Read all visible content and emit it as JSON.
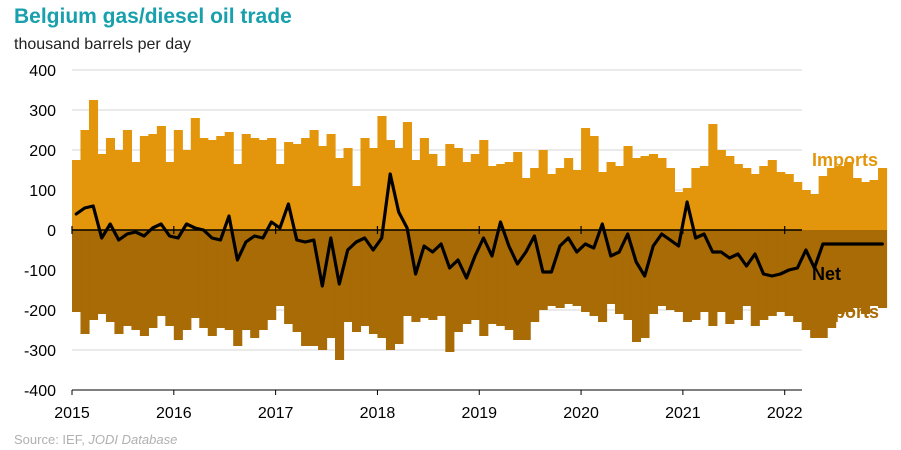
{
  "title": "Belgium gas/diesel oil trade",
  "subtitle": "thousand barrels per day",
  "source": {
    "prefix": "Source: IEF, ",
    "database": "JODI Database"
  },
  "colors": {
    "imports": "#e3960b",
    "exports": "#a86b05",
    "net": "#000000",
    "title": "#18a0ac",
    "exports_label": "#a86b05",
    "grid": "#d4d4d4",
    "axis": "#000000"
  },
  "chart_data": {
    "type": "bar",
    "title": "Belgium gas/diesel oil trade",
    "ylabel": "thousand barrels per day",
    "xlabel": "",
    "ylim": [
      -400,
      400
    ],
    "yticks": [
      -400,
      -300,
      -200,
      -100,
      0,
      100,
      200,
      300,
      400
    ],
    "xlim": [
      2015,
      2022.17
    ],
    "xticks": [
      2015,
      2016,
      2017,
      2018,
      2019,
      2020,
      2021,
      2022
    ],
    "frequency": "monthly",
    "start": "2015-01",
    "series_labels": {
      "imports": "Imports",
      "exports": "Exports",
      "net": "Net"
    },
    "series": [
      {
        "name": "Imports",
        "kind": "bar",
        "values": [
          175,
          250,
          325,
          190,
          230,
          200,
          250,
          170,
          235,
          240,
          260,
          170,
          250,
          200,
          280,
          230,
          225,
          235,
          245,
          165,
          240,
          230,
          225,
          230,
          165,
          220,
          215,
          230,
          250,
          210,
          240,
          180,
          205,
          110,
          230,
          205,
          285,
          225,
          205,
          270,
          175,
          230,
          190,
          160,
          215,
          205,
          170,
          190,
          225,
          160,
          165,
          170,
          195,
          130,
          155,
          200,
          140,
          155,
          180,
          150,
          255,
          235,
          145,
          170,
          160,
          210,
          180,
          185,
          190,
          180,
          155,
          95,
          105,
          155,
          160,
          265,
          200,
          185,
          165,
          155,
          140,
          160,
          175,
          145,
          140,
          120,
          100,
          90,
          135,
          155,
          160,
          170,
          130,
          120,
          125,
          155
        ]
      },
      {
        "name": "Exports",
        "kind": "bar",
        "values": [
          -205,
          -260,
          -225,
          -210,
          -230,
          -260,
          -240,
          -250,
          -265,
          -245,
          -215,
          -240,
          -275,
          -250,
          -220,
          -245,
          -265,
          -245,
          -250,
          -290,
          -250,
          -270,
          -250,
          -225,
          -190,
          -235,
          -255,
          -290,
          -290,
          -300,
          -270,
          -325,
          -230,
          -255,
          -240,
          -260,
          -270,
          -300,
          -285,
          -215,
          -230,
          -220,
          -225,
          -215,
          -305,
          -255,
          -235,
          -225,
          -265,
          -235,
          -240,
          -250,
          -275,
          -275,
          -230,
          -200,
          -190,
          -195,
          -185,
          -190,
          -205,
          -215,
          -230,
          -185,
          -210,
          -225,
          -280,
          -270,
          -210,
          -190,
          -200,
          -205,
          -230,
          -225,
          -205,
          -240,
          -205,
          -235,
          -225,
          -190,
          -240,
          -225,
          -215,
          -205,
          -215,
          -230,
          -250,
          -270,
          -270,
          -245,
          -210,
          -205,
          -195,
          -210,
          -190,
          -195
        ]
      },
      {
        "name": "Net",
        "kind": "line",
        "values": [
          40,
          55,
          60,
          -20,
          15,
          -25,
          -10,
          -5,
          -15,
          5,
          15,
          -15,
          -20,
          15,
          5,
          0,
          -20,
          -25,
          35,
          -75,
          -30,
          -15,
          -20,
          20,
          5,
          65,
          -25,
          -30,
          -25,
          -140,
          -20,
          -135,
          -50,
          -30,
          -20,
          -50,
          -20,
          140,
          45,
          5,
          -110,
          -40,
          -55,
          -35,
          -95,
          -75,
          -120,
          -65,
          -20,
          -65,
          20,
          -40,
          -85,
          -55,
          -15,
          -105,
          -105,
          -40,
          -20,
          -55,
          -35,
          -45,
          15,
          -65,
          -55,
          -10,
          -80,
          -115,
          -40,
          -10,
          -25,
          -40,
          70,
          -20,
          -10,
          -55,
          -55,
          -70,
          -60,
          -90,
          -60,
          -110,
          -115,
          -110,
          -100,
          -95,
          -50,
          -95,
          -35,
          -35,
          -35,
          -35,
          -35,
          -35,
          -35,
          -35
        ]
      }
    ]
  }
}
